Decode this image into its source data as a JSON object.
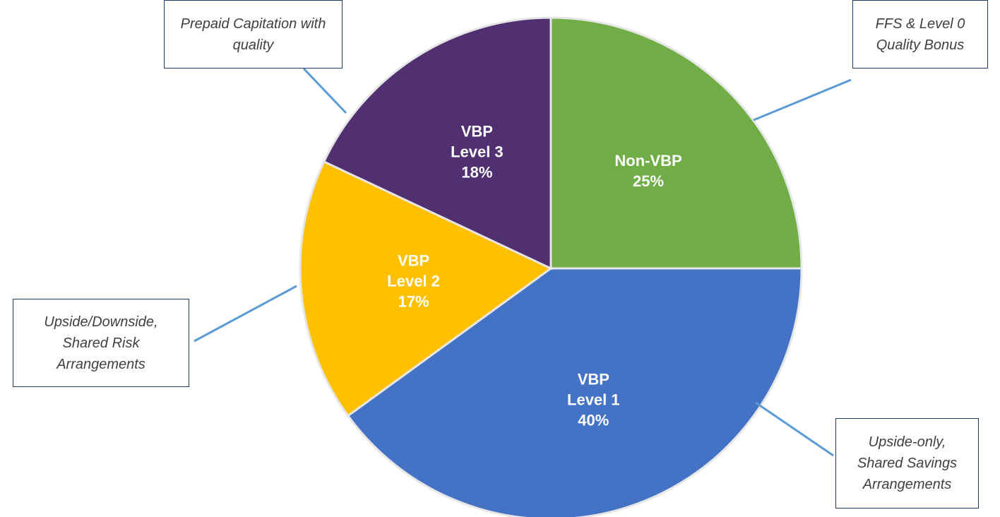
{
  "chart_data": {
    "type": "pie",
    "categories": [
      "Non-VBP",
      "VBP Level 1",
      "VBP Level 2",
      "VBP Level 3"
    ],
    "values": [
      25,
      40,
      17,
      18
    ],
    "value_labels": [
      "25%",
      "40%",
      "17%",
      "18%"
    ],
    "colors": [
      "#70ad47",
      "#4472c4",
      "#ffc000",
      "#513072"
    ],
    "annotations": [
      {
        "text": "FFS & Level 0 Quality Bonus"
      },
      {
        "text": "Upside-only, Shared Savings Arrangements"
      },
      {
        "text": "Upside/Downside, Shared Risk Arrangements"
      },
      {
        "text": "Prepaid Capitation with quality"
      }
    ]
  }
}
